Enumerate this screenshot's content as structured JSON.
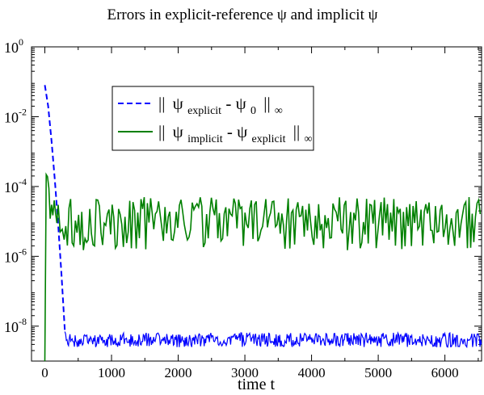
{
  "chart_data": {
    "type": "line",
    "title": "Errors in explicit-reference ψ and implicit ψ",
    "xlabel": "time t",
    "ylabel": "",
    "xlim": [
      -200,
      6550
    ],
    "ylim": [
      1e-09,
      1
    ],
    "yscale": "log",
    "grid": false,
    "legend_position": "top-center",
    "x_ticks": [
      0,
      1000,
      2000,
      3000,
      4000,
      5000,
      6000
    ],
    "x_tick_labels": [
      "0",
      "1000",
      "2000",
      "3000",
      "4000",
      "5000",
      "6000"
    ],
    "y_ticks": [
      1e-08,
      1e-06,
      0.0001,
      0.01,
      1
    ],
    "y_tick_labels": [
      {
        "base": "10",
        "exp": "-8"
      },
      {
        "base": "10",
        "exp": "-6"
      },
      {
        "base": "10",
        "exp": "-4"
      },
      {
        "base": "10",
        "exp": "-2"
      },
      {
        "base": "10",
        "exp": "0"
      }
    ],
    "series": [
      {
        "name": "|| ψexplicit - ψ0 ||∞",
        "legend": {
          "norm_left": "||",
          "psi": "ψ",
          "sub1": "explicit",
          "minus": " - ",
          "psi2": "ψ",
          "sub2": "0",
          "norm_right": "||",
          "inf": "∞"
        },
        "color": "#0000ff",
        "style": "dashed",
        "x": [
          0,
          50,
          100,
          150,
          200,
          250,
          300
        ],
        "y": [
          0.08,
          0.02,
          0.002,
          0.00015,
          8e-06,
          3e-07,
          7e-09
        ],
        "noise_start": 300,
        "noise_base": 4e-09,
        "noise_low": 2.5e-09,
        "noise_high": 6.5e-09
      },
      {
        "name": "|| ψimplicit - ψexplicit ||∞",
        "legend": {
          "norm_left": "||",
          "psi": "ψ",
          "sub1": "implicit",
          "minus": " - ",
          "psi2": "ψ",
          "sub2": "explicit",
          "norm_right": "||",
          "inf": "∞"
        },
        "color": "#008000",
        "style": "solid",
        "x": [
          0,
          20,
          40,
          60,
          80,
          100,
          120,
          140,
          160,
          180,
          200,
          230,
          260,
          290
        ],
        "y": [
          1e-09,
          0.00022,
          0.00019,
          9e-05,
          1.2e-05,
          3e-05,
          1.5e-05,
          4e-05,
          1.8e-05,
          9e-06,
          3e-05,
          5e-06,
          6e-06,
          3e-06
        ],
        "noise_start": 290,
        "noise_base": 1.5e-05,
        "noise_low": 1.5e-06,
        "noise_high": 5e-05
      }
    ]
  }
}
